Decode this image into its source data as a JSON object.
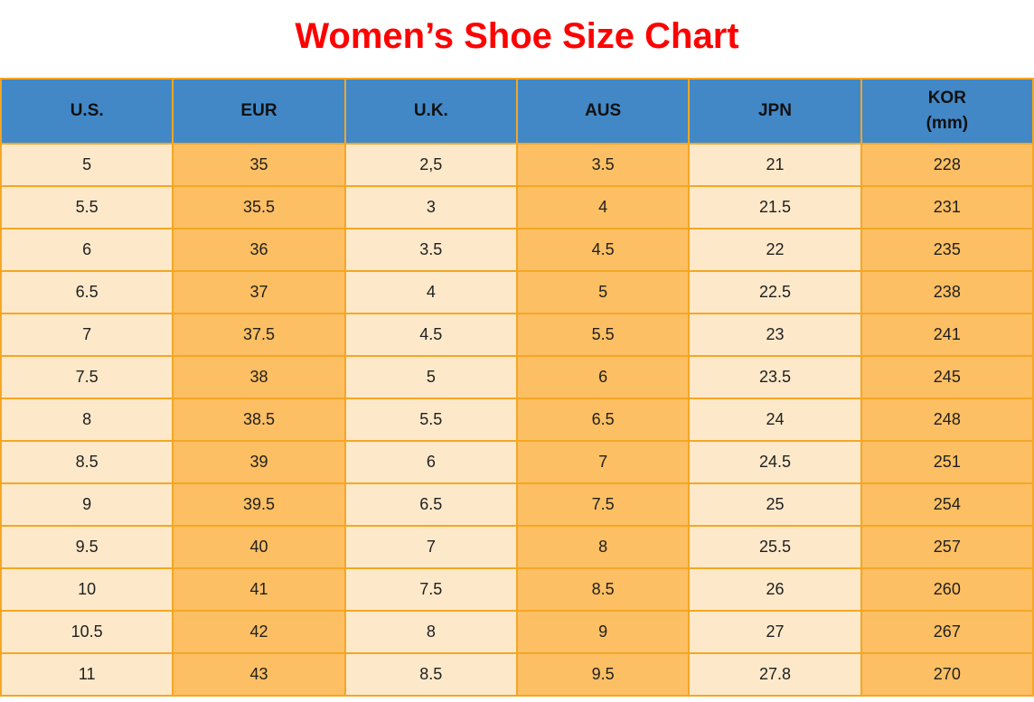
{
  "page": {
    "title": "Women’s Shoe Size Chart"
  },
  "colors": {
    "title_red": "#FF0000",
    "header_blue": "#4288C7",
    "cell_cream": "#FDE9CA",
    "cell_orange": "#FCBF63",
    "border_orange": "#F5A623",
    "text": "#1f1f1f"
  },
  "table": {
    "headers": [
      {
        "line1": "U.S.",
        "line2": ""
      },
      {
        "line1": "EUR",
        "line2": ""
      },
      {
        "line1": "U.K.",
        "line2": ""
      },
      {
        "line1": "AUS",
        "line2": ""
      },
      {
        "line1": "JPN",
        "line2": ""
      },
      {
        "line1": "KOR",
        "line2": "(mm)"
      }
    ],
    "column_fill_pattern": [
      "cream",
      "orange",
      "cream",
      "orange",
      "cream",
      "orange"
    ]
  },
  "chart_data": {
    "type": "table",
    "title": "Women’s Shoe Size Chart",
    "columns": [
      "U.S.",
      "EUR",
      "U.K.",
      "AUS",
      "JPN",
      "KOR (mm)"
    ],
    "rows": [
      [
        "5",
        "35",
        "2,5",
        "3.5",
        "21",
        "228"
      ],
      [
        "5.5",
        "35.5",
        "3",
        "4",
        "21.5",
        "231"
      ],
      [
        "6",
        "36",
        "3.5",
        "4.5",
        "22",
        "235"
      ],
      [
        "6.5",
        "37",
        "4",
        "5",
        "22.5",
        "238"
      ],
      [
        "7",
        "37.5",
        "4.5",
        "5.5",
        "23",
        "241"
      ],
      [
        "7.5",
        "38",
        "5",
        "6",
        "23.5",
        "245"
      ],
      [
        "8",
        "38.5",
        "5.5",
        "6.5",
        "24",
        "248"
      ],
      [
        "8.5",
        "39",
        "6",
        "7",
        "24.5",
        "251"
      ],
      [
        "9",
        "39.5",
        "6.5",
        "7.5",
        "25",
        "254"
      ],
      [
        "9.5",
        "40",
        "7",
        "8",
        "25.5",
        "257"
      ],
      [
        "10",
        "41",
        "7.5",
        "8.5",
        "26",
        "260"
      ],
      [
        "10.5",
        "42",
        "8",
        "9",
        "27",
        "267"
      ],
      [
        "11",
        "43",
        "8.5",
        "9.5",
        "27.8",
        "270"
      ]
    ]
  }
}
